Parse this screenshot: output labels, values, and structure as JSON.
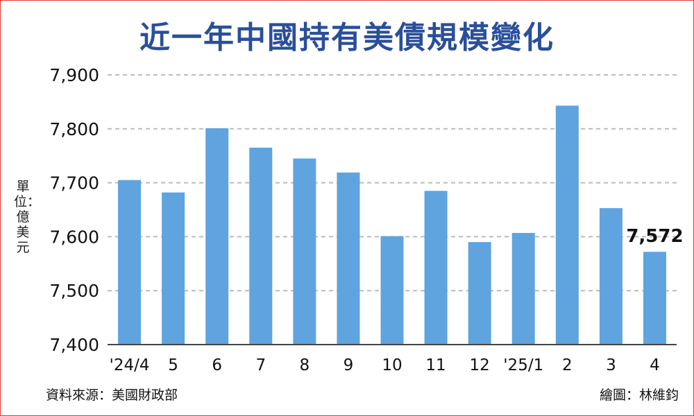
{
  "title": "近一年中國持有美債規模變化",
  "unit_label": "單位：億美元",
  "source": "資料來源：美國財政部",
  "credit": "繪圖：林維鈞",
  "colors": {
    "bar": "#5fa4de",
    "title": "#2a4f9a",
    "border": "#e8352b",
    "grid": "#bbbbbb"
  },
  "chart_data": {
    "type": "bar",
    "title": "近一年中國持有美債規模變化",
    "ylabel": "單位：億美元",
    "xlabel": "",
    "categories": [
      "'24/4",
      "5",
      "6",
      "7",
      "8",
      "9",
      "10",
      "11",
      "12",
      "'25/1",
      "2",
      "3",
      "4"
    ],
    "values": [
      7705,
      7682,
      7801,
      7765,
      7745,
      7719,
      7601,
      7685,
      7590,
      7607,
      7843,
      7653,
      7572
    ],
    "ylim": [
      7400,
      7900
    ],
    "yticks": [
      "7,900",
      "7,800",
      "7,700",
      "7,600",
      "7,500",
      "7,400"
    ],
    "ytick_values": [
      7900,
      7800,
      7700,
      7600,
      7500,
      7400
    ],
    "grid": true,
    "annotations": [
      {
        "category": "4",
        "text": "7,572"
      }
    ]
  }
}
